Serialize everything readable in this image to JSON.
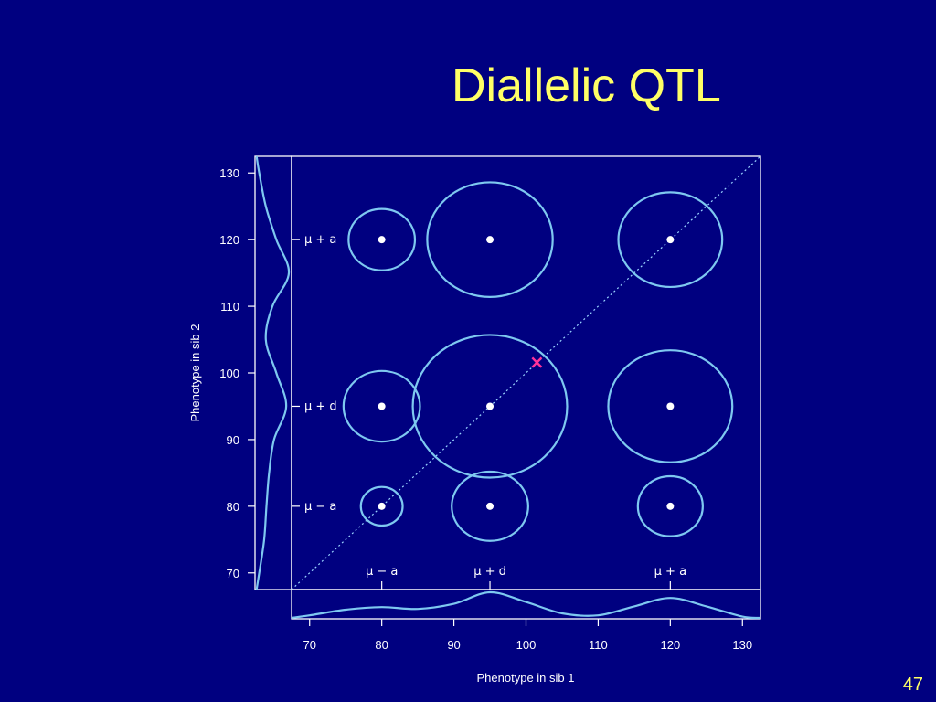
{
  "slide": {
    "title": "Diallelic QTL",
    "page_number": "47"
  },
  "colors": {
    "background": "#000080",
    "title": "#ffff66",
    "ellipse": "#7ec8f0",
    "text": "#ffffff",
    "marker": "#ff3399"
  },
  "chart_data": {
    "type": "scatter",
    "xlabel": "Phenotype in sib 1",
    "ylabel": "Phenotype in sib 2",
    "xlim": [
      67.5,
      132.5
    ],
    "ylim": [
      67.5,
      132.5
    ],
    "x_ticks": [
      70,
      80,
      90,
      100,
      110,
      120,
      130
    ],
    "y_ticks": [
      70,
      80,
      90,
      100,
      110,
      120,
      130
    ],
    "genotype_means": [
      {
        "label": "μ − a",
        "value": 80
      },
      {
        "label": "μ + d",
        "value": 95
      },
      {
        "label": "μ + a",
        "value": 120
      }
    ],
    "points": [
      {
        "x": 80,
        "y": 120,
        "rx": 4.6,
        "ry": 4.6
      },
      {
        "x": 95,
        "y": 120,
        "rx": 8.7,
        "ry": 8.6
      },
      {
        "x": 120,
        "y": 120,
        "rx": 7.2,
        "ry": 7.1
      },
      {
        "x": 80,
        "y": 95,
        "rx": 5.3,
        "ry": 5.3
      },
      {
        "x": 95,
        "y": 95,
        "rx": 10.7,
        "ry": 10.7
      },
      {
        "x": 120,
        "y": 95,
        "rx": 8.6,
        "ry": 8.4
      },
      {
        "x": 80,
        "y": 80,
        "rx": 2.9,
        "ry": 2.9
      },
      {
        "x": 95,
        "y": 80,
        "rx": 5.3,
        "ry": 5.2
      },
      {
        "x": 120,
        "y": 80,
        "rx": 4.5,
        "ry": 4.5
      }
    ],
    "marker": {
      "x": 101.5,
      "y": 101.5,
      "symbol": "×"
    },
    "diagonal": true,
    "marginal_density": {
      "x": [
        67.5,
        70,
        75,
        80,
        85,
        90,
        95,
        100,
        105,
        110,
        115,
        120,
        125,
        130,
        132.5
      ],
      "x_sib1": [
        0.0,
        0.1,
        0.32,
        0.42,
        0.35,
        0.55,
        1.0,
        0.62,
        0.18,
        0.1,
        0.45,
        0.78,
        0.45,
        0.05,
        0.0
      ],
      "y_sib2": [
        0.02,
        0.1,
        0.25,
        0.32,
        0.4,
        0.55,
        0.92,
        0.62,
        0.3,
        0.5,
        1.0,
        0.62,
        0.3,
        0.1,
        0.02
      ]
    }
  }
}
